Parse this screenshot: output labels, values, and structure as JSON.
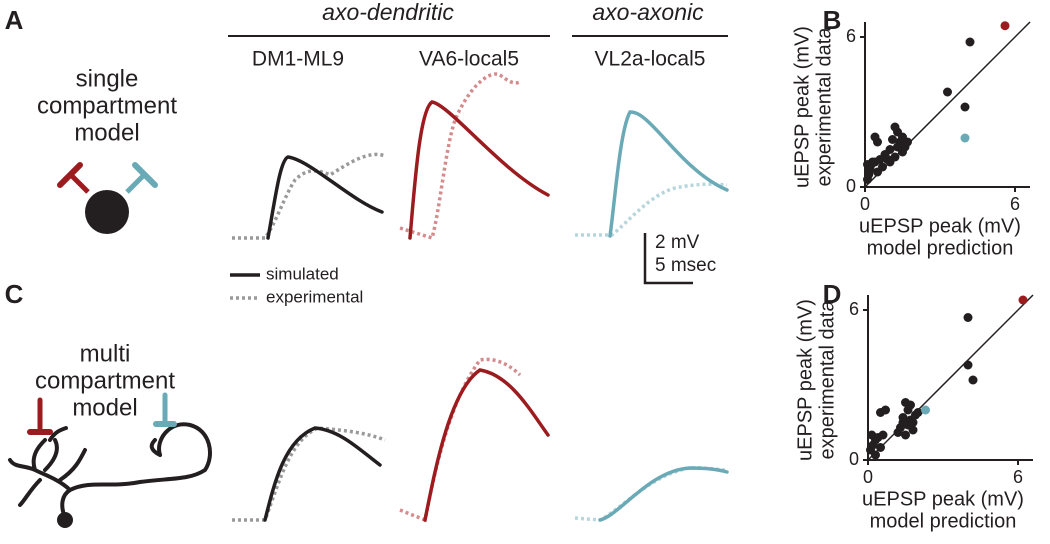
{
  "panel_labels": [
    "A",
    "B",
    "C",
    "D"
  ],
  "header": {
    "groups": [
      "axo-dendritic",
      "axo-axonic"
    ],
    "neurons": [
      "DM1-ML9",
      "VA6-local5",
      "VL2a-local5"
    ]
  },
  "models": [
    [
      "single",
      "compartment",
      "model"
    ],
    [
      "multi",
      "compartment",
      "model"
    ]
  ],
  "scale_bar": [
    "2 mV",
    "5 msec"
  ],
  "legend": [
    "simulated",
    "experimental"
  ],
  "chart_data": [
    {
      "type": "scatter",
      "xlabel": [
        "uEPSP peak (mV)",
        "model prediction"
      ],
      "ylabel": [
        "uEPSP peak (mV)",
        "experimental data"
      ],
      "xlim": [
        0,
        6.6
      ],
      "ylim": [
        0,
        6.6
      ],
      "xticks": [
        0,
        6
      ],
      "yticks": [
        0,
        6
      ],
      "x": [
        0.1,
        0.15,
        0.2,
        0.25,
        0.3,
        0.1,
        0.4,
        0.5,
        0.6,
        0.7,
        0.8,
        0.9,
        1.0,
        1.1,
        1.2,
        1.3,
        1.2,
        1.4,
        1.5,
        1.5,
        1.6,
        1.7,
        0.5,
        0.4,
        1.0,
        1.3,
        4.2,
        3.3,
        4.0,
        4.0,
        5.6
      ],
      "y": [
        0.3,
        0.5,
        0.7,
        0.9,
        1.0,
        0.9,
        1.0,
        0.6,
        1.1,
        0.8,
        1.3,
        1.1,
        1.5,
        1.9,
        1.2,
        2.2,
        2.4,
        1.8,
        1.4,
        2.0,
        1.6,
        1.8,
        1.8,
        2.0,
        1.0,
        1.6,
        5.8,
        3.8,
        3.2,
        1.96,
        6.45
      ],
      "colors": [
        "#231f20",
        "#231f20",
        "#231f20",
        "#231f20",
        "#231f20",
        "#231f20",
        "#231f20",
        "#231f20",
        "#231f20",
        "#231f20",
        "#231f20",
        "#231f20",
        "#231f20",
        "#231f20",
        "#231f20",
        "#231f20",
        "#231f20",
        "#231f20",
        "#231f20",
        "#231f20",
        "#231f20",
        "#231f20",
        "#231f20",
        "#231f20",
        "#231f20",
        "#231f20",
        "#231f20",
        "#231f20",
        "#231f20",
        "#6aa9b6",
        "#9b1b1e"
      ]
    },
    {
      "type": "scatter",
      "xlabel": [
        "uEPSP peak (mV)",
        "model prediction"
      ],
      "ylabel": [
        "uEPSP peak (mV)",
        "experimental data"
      ],
      "xlim": [
        0,
        6.6
      ],
      "ylim": [
        0,
        6.6
      ],
      "xticks": [
        0,
        6
      ],
      "yticks": [
        0,
        6
      ],
      "x": [
        0.1,
        0.2,
        0.3,
        0.15,
        0.4,
        0.5,
        0.6,
        0.5,
        0.7,
        1.2,
        1.3,
        1.4,
        1.5,
        1.6,
        1.7,
        1.8,
        1.9,
        1.5,
        1.7,
        2.0,
        1.4,
        1.6,
        0.3,
        1.8,
        2.3,
        4.0,
        4.0,
        4.2,
        6.2
      ],
      "y": [
        0.4,
        0.6,
        0.8,
        1.0,
        0.9,
        0.5,
        1.0,
        1.9,
        2.0,
        1.1,
        1.3,
        1.5,
        1.0,
        1.4,
        1.6,
        1.2,
        1.8,
        2.3,
        2.2,
        1.9,
        1.7,
        2.0,
        0.2,
        1.5,
        2.0,
        5.7,
        3.8,
        3.2,
        6.4
      ],
      "colors": [
        "#231f20",
        "#231f20",
        "#231f20",
        "#231f20",
        "#231f20",
        "#231f20",
        "#231f20",
        "#231f20",
        "#231f20",
        "#231f20",
        "#231f20",
        "#231f20",
        "#231f20",
        "#231f20",
        "#231f20",
        "#231f20",
        "#231f20",
        "#231f20",
        "#231f20",
        "#231f20",
        "#231f20",
        "#231f20",
        "#231f20",
        "#231f20",
        "#6aa9b6",
        "#231f20",
        "#231f20",
        "#231f20",
        "#9b1b1e"
      ]
    }
  ]
}
